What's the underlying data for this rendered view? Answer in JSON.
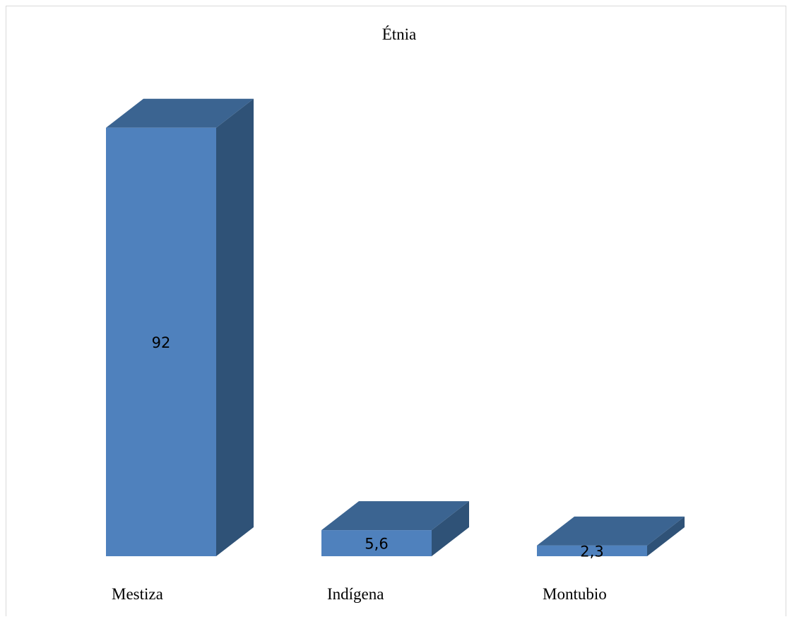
{
  "chart_data": {
    "type": "bar",
    "title": "Étnia",
    "categories": [
      "Mestiza",
      "Indígena",
      "Montubio"
    ],
    "values": [
      92,
      5.6,
      2.3
    ],
    "data_labels": [
      "92",
      "5,6",
      "2,3"
    ],
    "xlabel": "",
    "ylabel": "",
    "ylim": [
      0,
      100
    ],
    "grid": false,
    "legend": "none",
    "style": "3d-column",
    "colors": {
      "front": "#4f81bd",
      "top": "#3b6491",
      "side": "#2f5277"
    }
  }
}
